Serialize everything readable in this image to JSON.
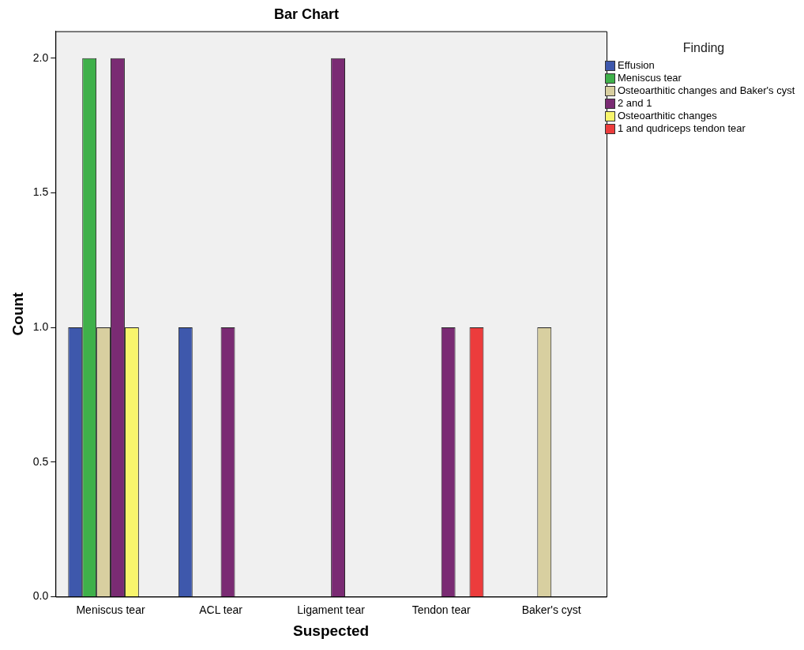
{
  "chart_data": {
    "type": "bar",
    "title": "Bar Chart",
    "xlabel": "Suspected",
    "ylabel": "Count",
    "legend_title": "Finding",
    "legend": "right",
    "grid": false,
    "categories": [
      "Meniscus tear",
      "ACL tear",
      "Ligament tear",
      "Tendon tear",
      "Baker's cyst"
    ],
    "ylim": [
      0,
      2.1
    ],
    "yticks": [
      {
        "value": 0,
        "label": "0.0"
      },
      {
        "value": 0.5,
        "label": "0.5"
      },
      {
        "value": 1,
        "label": "1.0"
      },
      {
        "value": 1.5,
        "label": "1.5"
      },
      {
        "value": 2,
        "label": "2.0"
      }
    ],
    "series": [
      {
        "name": "Effusion",
        "color": "#3e58ac",
        "values": [
          1,
          1,
          null,
          null,
          null
        ]
      },
      {
        "name": "Meniscus tear",
        "color": "#3fb04a",
        "values": [
          2,
          null,
          null,
          null,
          null
        ]
      },
      {
        "name": "Osteoarthitic changes and Baker's cyst",
        "color": "#d8cfa0",
        "values": [
          1,
          null,
          null,
          null,
          1
        ]
      },
      {
        "name": "2 and 1",
        "color": "#7a2b73",
        "values": [
          2,
          1,
          2,
          1,
          null
        ]
      },
      {
        "name": "Osteoarthitic changes",
        "color": "#f8f56c",
        "values": [
          1,
          null,
          null,
          null,
          null
        ]
      },
      {
        "name": "1 and qudriceps tendon tear",
        "color": "#ec3c3c",
        "values": [
          null,
          null,
          null,
          1,
          null
        ]
      }
    ]
  }
}
